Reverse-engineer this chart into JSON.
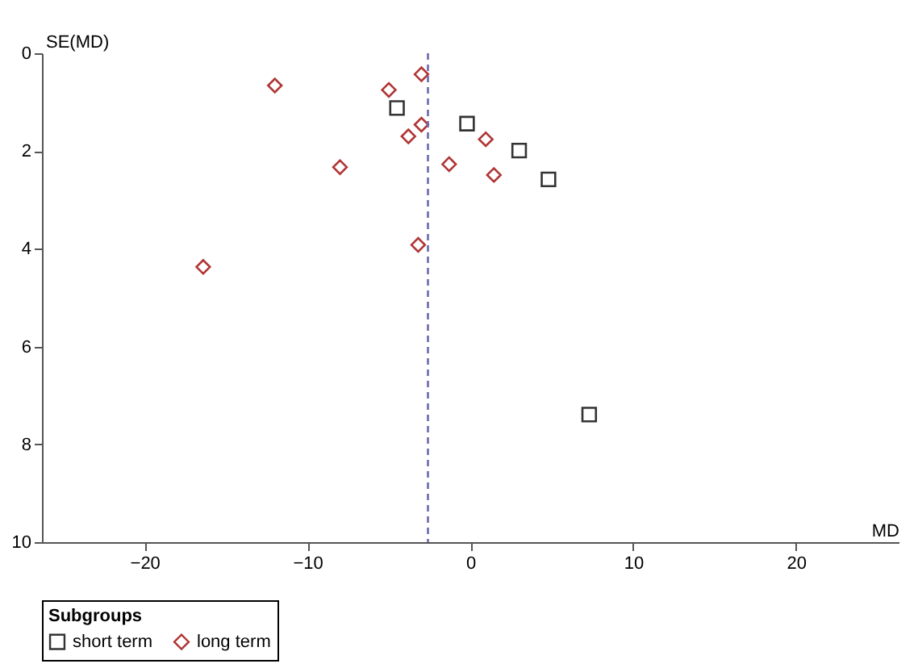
{
  "chart_data": {
    "type": "scatter",
    "xlabel": "MD",
    "ylabel": "SE(MD)",
    "legend_title": "Subgroups",
    "legend": "bottom",
    "xlim": [
      -26.3,
      26.3
    ],
    "ylim": [
      10,
      0
    ],
    "xticks": [
      -20,
      -10,
      0,
      10,
      20
    ],
    "yticks": [
      0,
      2,
      4,
      6,
      8,
      10
    ],
    "grid": false,
    "series": [
      {
        "name": "short term",
        "color": "#333333",
        "marker": "square",
        "x": [
          -4.5,
          -0.2,
          3.0,
          4.8,
          7.3
        ],
        "values": [
          1.12,
          1.44,
          1.99,
          2.58,
          7.39
        ]
      },
      {
        "name": "long term",
        "color": "#b03535",
        "marker": "diamond",
        "x": [
          -12.0,
          -5.0,
          -3.0,
          -3.0,
          -3.8,
          -8.0,
          -1.3,
          0.95,
          1.45,
          -3.2,
          -16.4
        ],
        "values": [
          0.66,
          0.75,
          0.43,
          1.46,
          1.7,
          2.33,
          2.27,
          1.76,
          2.49,
          3.92,
          4.37
        ]
      }
    ],
    "ref_lines": [
      {
        "axis": "x",
        "value": -2.6,
        "color": "#6a6ab0",
        "line_style": "dashed"
      }
    ]
  }
}
